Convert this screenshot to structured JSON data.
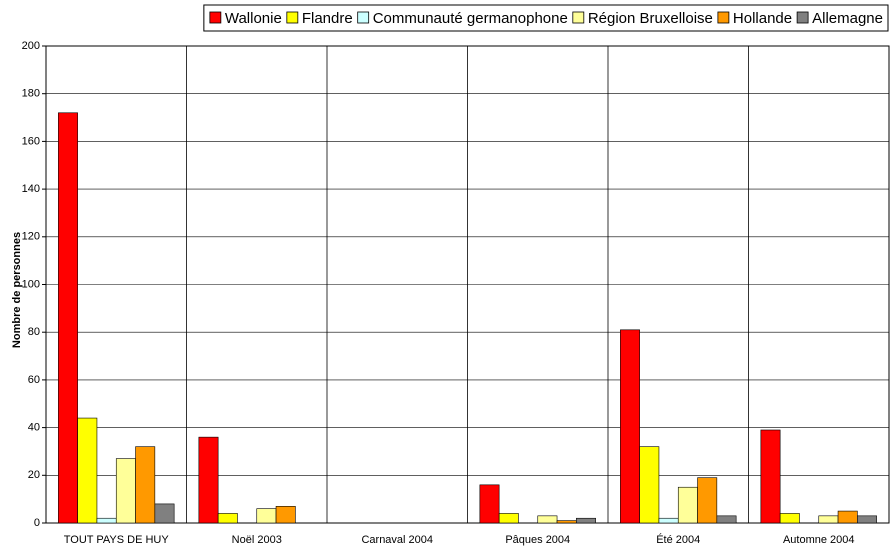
{
  "chart_data": {
    "type": "bar",
    "y_label": "Nombre de personnes",
    "categories": [
      "TOUT PAYS DE HUY",
      "Noël 2003",
      "Carnaval 2004",
      "Pâques 2004",
      "Été 2004",
      "Automne 2004"
    ],
    "series": [
      {
        "name": "Wallonie",
        "color": "#ff0000",
        "values": [
          172,
          36,
          0,
          16,
          81,
          39
        ]
      },
      {
        "name": "Flandre",
        "color": "#ffff00",
        "values": [
          44,
          4,
          0,
          4,
          32,
          4
        ]
      },
      {
        "name": "Communauté germanophone",
        "color": "#ccffff",
        "values": [
          2,
          0,
          0,
          0,
          2,
          0
        ]
      },
      {
        "name": "Région Bruxelloise",
        "color": "#ffff99",
        "values": [
          27,
          6,
          0,
          3,
          15,
          3
        ]
      },
      {
        "name": "Hollande",
        "color": "#ff9900",
        "values": [
          32,
          7,
          0,
          1,
          19,
          5
        ]
      },
      {
        "name": "Allemagne",
        "color": "#808080",
        "values": [
          8,
          0,
          0,
          2,
          3,
          3
        ]
      }
    ],
    "ylim": [
      0,
      200
    ],
    "yticks": [
      0,
      20,
      40,
      60,
      80,
      100,
      120,
      140,
      160,
      180,
      200
    ],
    "grid": true,
    "legend": "top"
  }
}
